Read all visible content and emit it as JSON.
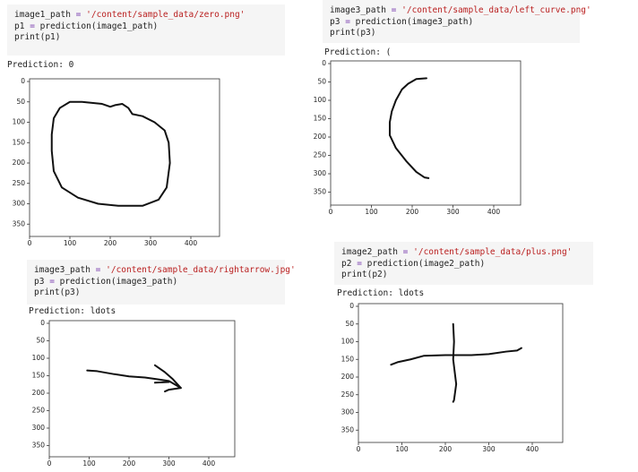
{
  "cells": [
    {
      "code": [
        [
          "image1_path",
          "=",
          "'/content/sample_data/zero.png'"
        ],
        [
          "p1",
          "=",
          "prediction(image1_path)"
        ],
        [
          "print(p1)"
        ]
      ],
      "output": "Prediction: 0",
      "plot": {
        "xticks": [
          0,
          100,
          200,
          300,
          400
        ],
        "yticks": [
          0,
          50,
          100,
          150,
          200,
          250,
          300,
          350
        ]
      }
    },
    {
      "code": [
        [
          "image3_path",
          "=",
          "'/content/sample_data/left_curve.png'"
        ],
        [
          "p3",
          "=",
          "prediction(image3_path)"
        ],
        [
          "print(p3)"
        ]
      ],
      "output": "Prediction: (",
      "plot": {
        "xticks": [
          0,
          100,
          200,
          300,
          400
        ],
        "yticks": [
          0,
          50,
          100,
          150,
          200,
          250,
          300,
          350
        ]
      }
    },
    {
      "code": [
        [
          "image3_path",
          "=",
          "'/content/sample_data/rightarrow.jpg'"
        ],
        [
          "p3",
          "=",
          "prediction(image3_path)"
        ],
        [
          "print(p3)"
        ]
      ],
      "output": "Prediction: ldots",
      "plot": {
        "xticks": [
          0,
          100,
          200,
          300,
          400
        ],
        "yticks": [
          0,
          50,
          100,
          150,
          200,
          250,
          300,
          350
        ]
      }
    },
    {
      "code": [
        [
          "image2_path",
          "=",
          "'/content/sample_data/plus.png'"
        ],
        [
          "p2",
          "=",
          "prediction(image2_path)"
        ],
        [
          "print(p2)"
        ]
      ],
      "output": "Prediction: ldots",
      "plot": {
        "xticks": [
          0,
          100,
          200,
          300,
          400
        ],
        "yticks": [
          0,
          50,
          100,
          150,
          200,
          250,
          300,
          350
        ]
      }
    }
  ]
}
